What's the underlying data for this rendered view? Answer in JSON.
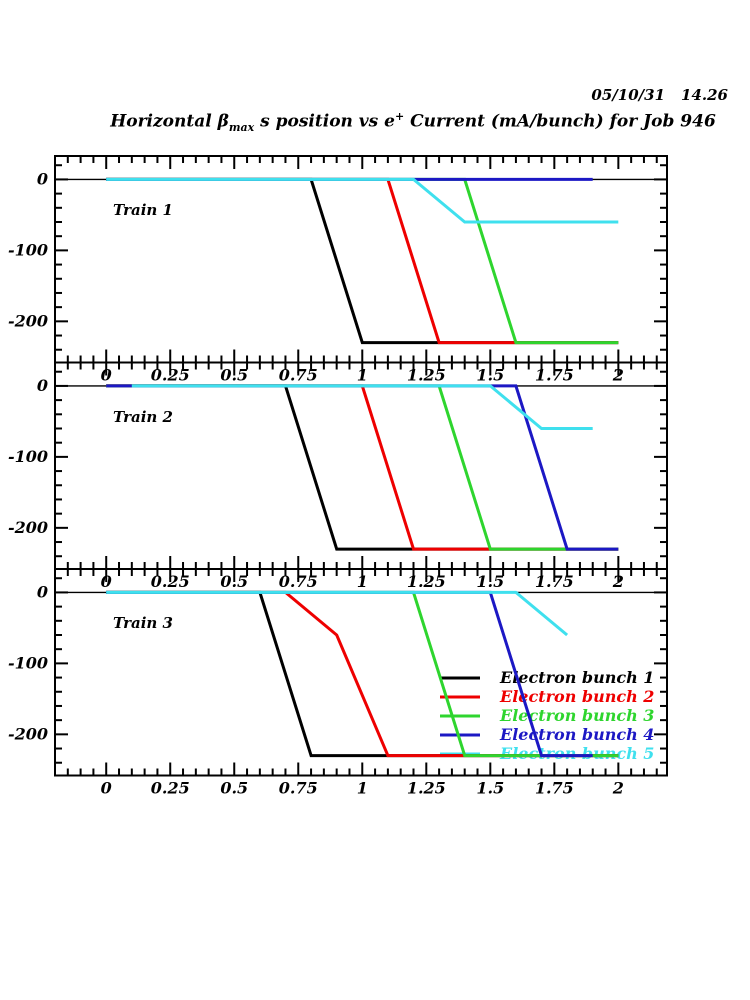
{
  "header": {
    "date": "05/10/31",
    "time": "14.26"
  },
  "title_parts": {
    "prefix": "Horizontal β",
    "beta_sub": "max",
    "mid": " s position vs e",
    "sup": "+",
    "suffix": " Current (mA/bunch) for Job 946"
  },
  "chart_data": {
    "type": "line",
    "title": "Horizontal β_max s position vs e+ Current (mA/bunch) for Job 946",
    "timestamp": "05/10/31 14.26",
    "xlabel": "e+ Current (mA/bunch)",
    "ylabel": "Horizontal beta_max s position",
    "xlim": [
      -0.2,
      2.19
    ],
    "ylim": [
      -258,
      33
    ],
    "x_ticks": [
      0,
      0.25,
      0.5,
      0.75,
      1,
      1.25,
      1.5,
      1.75,
      2
    ],
    "x_tick_labels": [
      "0",
      "0.25",
      "0.5",
      "0.75",
      "1",
      "1.25",
      "1.5",
      "1.75",
      "2"
    ],
    "x_minor_step": 0.05,
    "y_ticks": [
      0,
      -100,
      -200
    ],
    "y_tick_labels": [
      "0",
      "-100",
      "-200"
    ],
    "y_minor_step": 20,
    "grid": false,
    "colors": {
      "bunch1": "#000000",
      "bunch2": "#ee0000",
      "bunch3": "#2ed52e",
      "bunch4": "#1c18c4",
      "bunch5": "#3fe0ee"
    },
    "legend": {
      "position": "inside-bottom-right-of-panel-3",
      "items": [
        {
          "label": "Electron bunch 1",
          "color": "#000000"
        },
        {
          "label": "Electron bunch 2",
          "color": "#ee0000"
        },
        {
          "label": "Electron bunch 3",
          "color": "#2ed52e"
        },
        {
          "label": "Electron bunch 4",
          "color": "#1c18c4"
        },
        {
          "label": "Electron bunch 5",
          "color": "#3fe0ee"
        }
      ]
    },
    "panels": [
      {
        "label": "Train 1",
        "series": [
          {
            "name": "Electron bunch 1",
            "color": "#000000",
            "points": [
              [
                0,
                0
              ],
              [
                0.8,
                0
              ],
              [
                1.0,
                -230
              ],
              [
                2.0,
                -230
              ]
            ]
          },
          {
            "name": "Electron bunch 2",
            "color": "#ee0000",
            "points": [
              [
                0,
                0
              ],
              [
                1.1,
                0
              ],
              [
                1.3,
                -230
              ],
              [
                2.0,
                -230
              ]
            ]
          },
          {
            "name": "Electron bunch 3",
            "color": "#2ed52e",
            "points": [
              [
                0,
                0
              ],
              [
                1.4,
                0
              ],
              [
                1.6,
                -230
              ],
              [
                2.0,
                -230
              ]
            ]
          },
          {
            "name": "Electron bunch 4",
            "color": "#1c18c4",
            "points": [
              [
                0,
                0
              ],
              [
                1.9,
                0
              ]
            ]
          },
          {
            "name": "Electron bunch 5",
            "color": "#3fe0ee",
            "points": [
              [
                0,
                0
              ],
              [
                1.2,
                0
              ],
              [
                1.4,
                -60
              ],
              [
                2.0,
                -60
              ]
            ]
          }
        ]
      },
      {
        "label": "Train 2",
        "series": [
          {
            "name": "Electron bunch 1",
            "color": "#000000",
            "points": [
              [
                0,
                0
              ],
              [
                0.7,
                0
              ],
              [
                0.9,
                -230
              ],
              [
                2.0,
                -230
              ]
            ]
          },
          {
            "name": "Electron bunch 2",
            "color": "#ee0000",
            "points": [
              [
                0,
                0
              ],
              [
                1.0,
                0
              ],
              [
                1.2,
                -230
              ],
              [
                2.0,
                -230
              ]
            ]
          },
          {
            "name": "Electron bunch 3",
            "color": "#2ed52e",
            "points": [
              [
                0,
                0
              ],
              [
                1.3,
                0
              ],
              [
                1.5,
                -230
              ],
              [
                2.0,
                -230
              ]
            ]
          },
          {
            "name": "Electron bunch 4",
            "color": "#1c18c4",
            "points": [
              [
                0,
                0
              ],
              [
                1.6,
                0
              ],
              [
                1.8,
                -230
              ],
              [
                2.0,
                -230
              ]
            ]
          },
          {
            "name": "Electron bunch 5",
            "color": "#3fe0ee",
            "points": [
              [
                0.1,
                0
              ],
              [
                1.5,
                0
              ],
              [
                1.7,
                -60
              ],
              [
                1.9,
                -60
              ]
            ]
          }
        ]
      },
      {
        "label": "Train 3",
        "series": [
          {
            "name": "Electron bunch 1",
            "color": "#000000",
            "points": [
              [
                0,
                0
              ],
              [
                0.6,
                0
              ],
              [
                0.8,
                -230
              ],
              [
                2.0,
                -230
              ]
            ]
          },
          {
            "name": "Electron bunch 2",
            "color": "#ee0000",
            "points": [
              [
                0,
                0
              ],
              [
                0.7,
                0
              ],
              [
                0.9,
                -60
              ],
              [
                1.1,
                -230
              ],
              [
                2.0,
                -230
              ]
            ]
          },
          {
            "name": "Electron bunch 3",
            "color": "#2ed52e",
            "points": [
              [
                0,
                0
              ],
              [
                1.2,
                0
              ],
              [
                1.4,
                -230
              ],
              [
                2.0,
                -230
              ]
            ]
          },
          {
            "name": "Electron bunch 4",
            "color": "#1c18c4",
            "points": [
              [
                0,
                0
              ],
              [
                1.5,
                0
              ],
              [
                1.7,
                -230
              ],
              [
                1.9,
                -230
              ]
            ]
          },
          {
            "name": "Electron bunch 5",
            "color": "#3fe0ee",
            "points": [
              [
                0,
                0
              ],
              [
                1.6,
                0
              ],
              [
                1.8,
                -60
              ]
            ]
          }
        ]
      }
    ]
  }
}
